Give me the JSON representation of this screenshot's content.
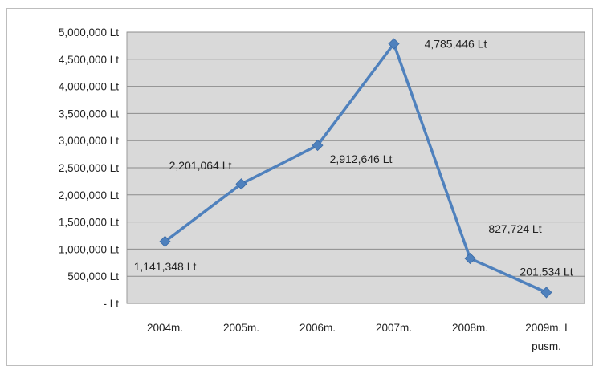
{
  "chart_data": {
    "type": "line",
    "title": "",
    "xlabel": "",
    "ylabel": "",
    "categories": [
      "2004m.",
      "2005m.",
      "2006m.",
      "2007m.",
      "2008m.",
      "2009m. I pusm."
    ],
    "category_lines": [
      [
        "2004m."
      ],
      [
        "2005m."
      ],
      [
        "2006m."
      ],
      [
        "2007m."
      ],
      [
        "2008m."
      ],
      [
        "2009m. I",
        "pusm."
      ]
    ],
    "series": [
      {
        "values": [
          1141348,
          2201064,
          2912646,
          4785446,
          827724,
          201534
        ],
        "color": "#4f81bd",
        "data_labels": [
          "1,141,348 Lt",
          "2,201,064 Lt",
          "2,912,646 Lt",
          "4,785,446 Lt",
          "827,724 Lt",
          "201,534 Lt"
        ]
      }
    ],
    "ylim": [
      0,
      5000000
    ],
    "y_ticks": [
      0,
      500000,
      1000000,
      1500000,
      2000000,
      2500000,
      3000000,
      3500000,
      4000000,
      4500000,
      5000000
    ],
    "y_tick_labels": [
      "- Lt",
      "500,000 Lt",
      "1,000,000 Lt",
      "1,500,000 Lt",
      "2,000,000 Lt",
      "2,500,000 Lt",
      "3,000,000 Lt",
      "3,500,000 Lt",
      "4,000,000 Lt",
      "4,500,000 Lt",
      "5,000,000 Lt"
    ],
    "grid": true,
    "plot_background": "#d9d9d9",
    "gridline_color": "#8c8c8c",
    "legend": "none",
    "marker": "diamond"
  }
}
